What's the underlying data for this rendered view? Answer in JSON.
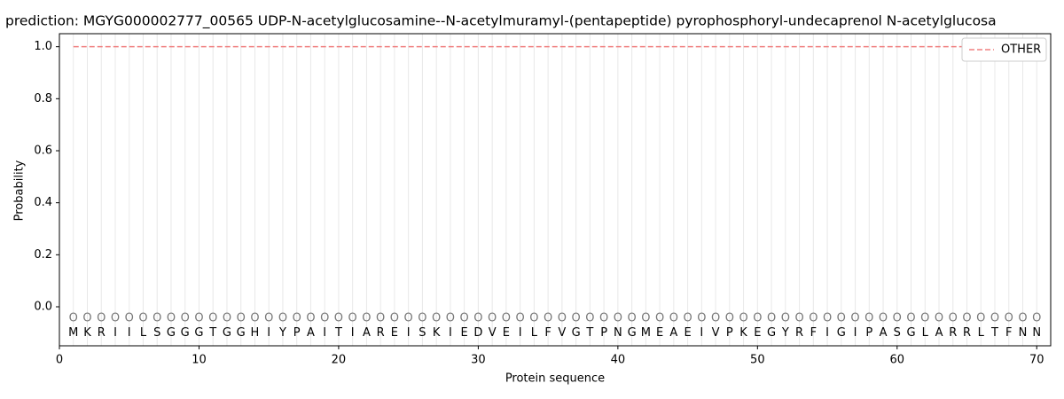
{
  "chart_data": {
    "type": "line",
    "title": "prediction: MGYG000002777_00565 UDP-N-acetylglucosamine--N-acetylmuramyl-(pentapeptide) pyrophosphoryl-undecaprenol N-acetylglucosa",
    "xlabel": "Protein sequence",
    "ylabel": "Probability",
    "x": [
      1,
      2,
      3,
      4,
      5,
      6,
      7,
      8,
      9,
      10,
      11,
      12,
      13,
      14,
      15,
      16,
      17,
      18,
      19,
      20,
      21,
      22,
      23,
      24,
      25,
      26,
      27,
      28,
      29,
      30,
      31,
      32,
      33,
      34,
      35,
      36,
      37,
      38,
      39,
      40,
      41,
      42,
      43,
      44,
      45,
      46,
      47,
      48,
      49,
      50,
      51,
      52,
      53,
      54,
      55,
      56,
      57,
      58,
      59,
      60,
      61,
      62,
      63,
      64,
      65,
      66,
      67,
      68,
      69,
      70
    ],
    "sequence": [
      "M",
      "K",
      "R",
      "I",
      "I",
      "L",
      "S",
      "G",
      "G",
      "G",
      "T",
      "G",
      "G",
      "H",
      "I",
      "Y",
      "P",
      "A",
      "I",
      "T",
      "I",
      "A",
      "R",
      "E",
      "I",
      "S",
      "K",
      "I",
      "E",
      "D",
      "V",
      "E",
      "I",
      "L",
      "F",
      "V",
      "G",
      "T",
      "P",
      "N",
      "G",
      "M",
      "E",
      "A",
      "E",
      "I",
      "V",
      "P",
      "K",
      "E",
      "G",
      "Y",
      "R",
      "F",
      "I",
      "G",
      "I",
      "P",
      "A",
      "S",
      "G",
      "L",
      "A",
      "R",
      "R",
      "L",
      "T",
      "F",
      "N",
      "N"
    ],
    "predicted_labels": [
      "O",
      "O",
      "O",
      "O",
      "O",
      "O",
      "O",
      "O",
      "O",
      "O",
      "O",
      "O",
      "O",
      "O",
      "O",
      "O",
      "O",
      "O",
      "O",
      "O",
      "O",
      "O",
      "O",
      "O",
      "O",
      "O",
      "O",
      "O",
      "O",
      "O",
      "O",
      "O",
      "O",
      "O",
      "O",
      "O",
      "O",
      "O",
      "O",
      "O",
      "O",
      "O",
      "O",
      "O",
      "O",
      "O",
      "O",
      "O",
      "O",
      "O",
      "O",
      "O",
      "O",
      "O",
      "O",
      "O",
      "O",
      "O",
      "O",
      "O",
      "O",
      "O",
      "O",
      "O",
      "O",
      "O",
      "O",
      "O",
      "O",
      "O"
    ],
    "series": [
      {
        "name": "OTHER",
        "color": "#f08080",
        "dashed": true,
        "values": [
          1,
          1,
          1,
          1,
          1,
          1,
          1,
          1,
          1,
          1,
          1,
          1,
          1,
          1,
          1,
          1,
          1,
          1,
          1,
          1,
          1,
          1,
          1,
          1,
          1,
          1,
          1,
          1,
          1,
          1,
          1,
          1,
          1,
          1,
          1,
          1,
          1,
          1,
          1,
          1,
          1,
          1,
          1,
          1,
          1,
          1,
          1,
          1,
          1,
          1,
          1,
          1,
          1,
          1,
          1,
          1,
          1,
          1,
          1,
          1,
          1,
          1,
          1,
          1,
          1,
          1,
          1,
          1,
          1,
          1
        ]
      }
    ],
    "xlim": [
      0,
      71
    ],
    "ylim": [
      -0.15,
      1.05
    ],
    "xticks": [
      0,
      10,
      20,
      30,
      40,
      50,
      60,
      70
    ],
    "yticks": [
      {
        "value": 0,
        "label": "0.0"
      },
      0.2,
      0.4,
      0.6,
      0.8,
      {
        "value": 1,
        "label": "1.0"
      }
    ],
    "legend": "upper right",
    "grid": true
  }
}
